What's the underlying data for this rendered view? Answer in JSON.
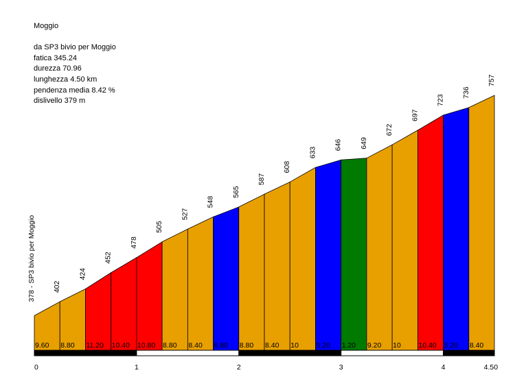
{
  "info": {
    "name": "Moggio",
    "route": "da SP3 bivio per Moggio",
    "fatica": "fatica 345.24",
    "durezza": "durezza 70.96",
    "lunghezza": "lunghezza 4.50 km",
    "pendenza": "pendenza media 8.42 %",
    "dislivello": "dislivello 379 m"
  },
  "colors": {
    "orange": "#e8a000",
    "red": "#ff0000",
    "blue": "#0000ff",
    "green": "#007a00",
    "stroke": "#000000",
    "bar_dark": "#000000",
    "bar_light": "#ffffff"
  },
  "chart_data": {
    "type": "area",
    "title": "Moggio",
    "start_label": "378 - SP3 bivio per Moggio",
    "segment_length_km": 0.25,
    "total_km": 4.5,
    "xlim": [
      0,
      4.5
    ],
    "x_ticks": [
      "0",
      "1",
      "2",
      "3",
      "4",
      "4.50"
    ],
    "x_tick_values": [
      0,
      1,
      2,
      3,
      4,
      4.5
    ],
    "elevations": [
      378,
      402,
      424,
      452,
      478,
      505,
      527,
      548,
      565,
      587,
      608,
      633,
      646,
      649,
      672,
      697,
      723,
      736,
      757
    ],
    "elevation_labels": [
      "402",
      "424",
      "452",
      "478",
      "505",
      "527",
      "548",
      "565",
      "587",
      "608",
      "633",
      "646",
      "649",
      "672",
      "697",
      "723",
      "736",
      "757"
    ],
    "gradients": [
      "9.60",
      "8.80",
      "11.20",
      "10.40",
      "10.80",
      "8.80",
      "8.40",
      "6.80",
      "8.80",
      "8.40",
      "10",
      "5.20",
      "1.20",
      "9.20",
      "10",
      "10.40",
      "5.20",
      "8.40"
    ],
    "segment_colors": [
      "orange",
      "orange",
      "red",
      "red",
      "red",
      "orange",
      "orange",
      "blue",
      "orange",
      "orange",
      "orange",
      "blue",
      "green",
      "orange",
      "orange",
      "red",
      "blue",
      "orange"
    ]
  }
}
